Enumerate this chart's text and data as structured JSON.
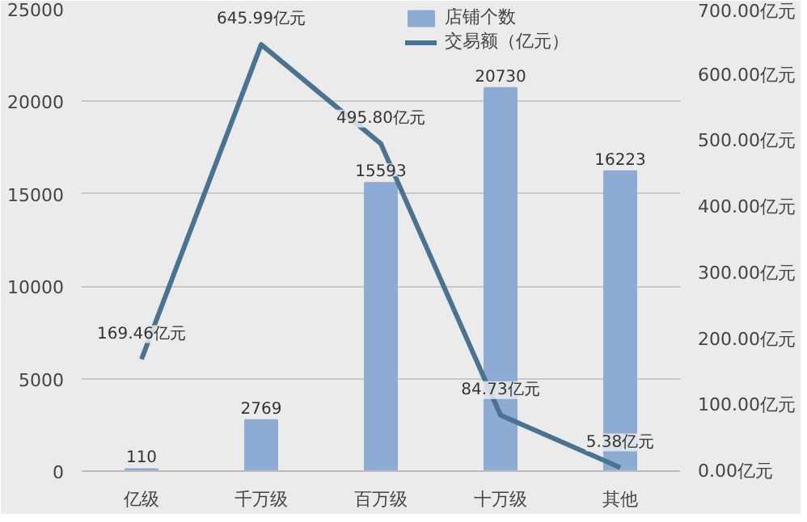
{
  "chart_data": {
    "type": "bar",
    "categories": [
      "亿级",
      "千万级",
      "百万级",
      "十万级",
      "其他"
    ],
    "series": [
      {
        "name": "店铺个数",
        "color": "#8eabd3",
        "values": [
          110,
          2769,
          15593,
          20730,
          16223
        ],
        "data_labels": true
      },
      {
        "name": "交易额（亿元）",
        "type": "line",
        "axis": "y2",
        "color": "#4a7391",
        "values": [
          169.46,
          645.99,
          495.8,
          84.73,
          5.38
        ],
        "value_labels": [
          "169.46亿元",
          "645.99亿元",
          "495.80亿元",
          "84.73亿元",
          "5.38亿元"
        ]
      }
    ],
    "ylim": [
      0,
      25000
    ],
    "yticks": [
      0,
      5000,
      10000,
      15000,
      20000,
      25000
    ],
    "y2lim": [
      0,
      700
    ],
    "y2ticks": [
      {
        "value": 0,
        "label": "0.00亿元"
      },
      {
        "value": 100,
        "label": "100.00亿元"
      },
      {
        "value": 200,
        "label": "200.00亿元"
      },
      {
        "value": 300,
        "label": "300.00亿元"
      },
      {
        "value": 400,
        "label": "400.00亿元"
      },
      {
        "value": 500,
        "label": "500.00亿元"
      },
      {
        "value": 600,
        "label": "600.00亿元"
      },
      {
        "value": 700,
        "label": "700.00亿元"
      }
    ],
    "grid": "y",
    "legend": "top",
    "marker": "none",
    "line_style": "solid"
  }
}
